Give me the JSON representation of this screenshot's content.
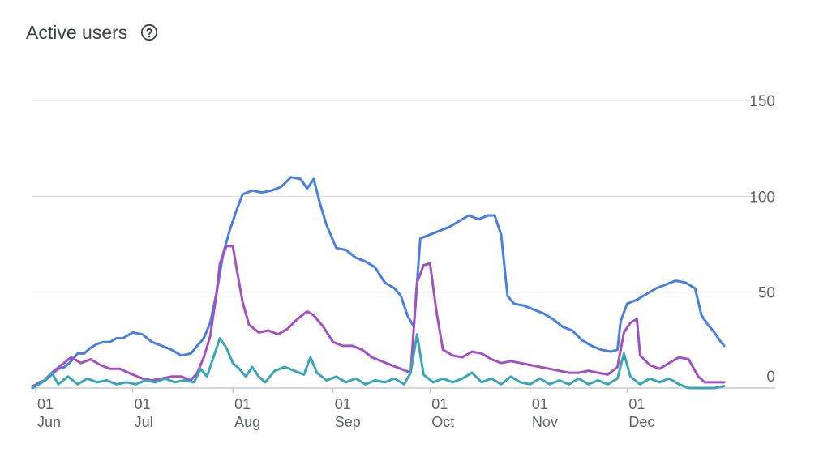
{
  "header": {
    "title": "Active users",
    "help_icon": "help-circle-icon"
  },
  "chart_data": {
    "type": "line",
    "title": "Active users",
    "xlabel": "",
    "ylabel": "",
    "ylim": [
      0,
      150
    ],
    "yticks": [
      0,
      50,
      100,
      150
    ],
    "y_axis_side": "right",
    "grid": true,
    "legend": "none",
    "x_start": "2023-05-31",
    "x_ticks": [
      {
        "date": "2023-06-01",
        "day": "01",
        "month": "Jun"
      },
      {
        "date": "2023-07-01",
        "day": "01",
        "month": "Jul"
      },
      {
        "date": "2023-08-01",
        "day": "01",
        "month": "Aug"
      },
      {
        "date": "2023-09-01",
        "day": "01",
        "month": "Sep"
      },
      {
        "date": "2023-10-01",
        "day": "01",
        "month": "Oct"
      },
      {
        "date": "2023-11-01",
        "day": "01",
        "month": "Nov"
      },
      {
        "date": "2023-12-01",
        "day": "01",
        "month": "Dec"
      }
    ],
    "series": [
      {
        "color": "#4a7fe2",
        "points": [
          [
            "2023-05-31",
            0
          ],
          [
            "2023-06-02",
            3
          ],
          [
            "2023-06-04",
            4
          ],
          [
            "2023-06-06",
            7
          ],
          [
            "2023-06-08",
            10
          ],
          [
            "2023-06-10",
            11
          ],
          [
            "2023-06-12",
            14
          ],
          [
            "2023-06-14",
            18
          ],
          [
            "2023-06-16",
            18
          ],
          [
            "2023-06-18",
            21
          ],
          [
            "2023-06-20",
            23
          ],
          [
            "2023-06-22",
            24
          ],
          [
            "2023-06-24",
            24
          ],
          [
            "2023-06-26",
            26
          ],
          [
            "2023-06-28",
            26
          ],
          [
            "2023-07-01",
            29
          ],
          [
            "2023-07-04",
            28
          ],
          [
            "2023-07-07",
            24
          ],
          [
            "2023-07-10",
            22
          ],
          [
            "2023-07-13",
            20
          ],
          [
            "2023-07-16",
            17
          ],
          [
            "2023-07-19",
            18
          ],
          [
            "2023-07-21",
            22
          ],
          [
            "2023-07-23",
            26
          ],
          [
            "2023-07-25",
            34
          ],
          [
            "2023-07-27",
            50
          ],
          [
            "2023-07-29",
            70
          ],
          [
            "2023-07-31",
            82
          ],
          [
            "2023-08-02",
            92
          ],
          [
            "2023-08-04",
            101
          ],
          [
            "2023-08-07",
            103
          ],
          [
            "2023-08-10",
            102
          ],
          [
            "2023-08-13",
            103
          ],
          [
            "2023-08-16",
            105
          ],
          [
            "2023-08-19",
            110
          ],
          [
            "2023-08-22",
            109
          ],
          [
            "2023-08-24",
            104
          ],
          [
            "2023-08-26",
            109
          ],
          [
            "2023-08-28",
            96
          ],
          [
            "2023-08-30",
            85
          ],
          [
            "2023-09-02",
            73
          ],
          [
            "2023-09-05",
            72
          ],
          [
            "2023-09-08",
            68
          ],
          [
            "2023-09-11",
            66
          ],
          [
            "2023-09-14",
            63
          ],
          [
            "2023-09-17",
            55
          ],
          [
            "2023-09-20",
            52
          ],
          [
            "2023-09-22",
            48
          ],
          [
            "2023-09-24",
            38
          ],
          [
            "2023-09-26",
            32
          ],
          [
            "2023-09-28",
            78
          ],
          [
            "2023-10-01",
            80
          ],
          [
            "2023-10-04",
            82
          ],
          [
            "2023-10-07",
            84
          ],
          [
            "2023-10-10",
            87
          ],
          [
            "2023-10-13",
            90
          ],
          [
            "2023-10-16",
            88
          ],
          [
            "2023-10-19",
            90
          ],
          [
            "2023-10-21",
            90
          ],
          [
            "2023-10-23",
            80
          ],
          [
            "2023-10-25",
            48
          ],
          [
            "2023-10-27",
            44
          ],
          [
            "2023-10-30",
            43
          ],
          [
            "2023-11-02",
            41
          ],
          [
            "2023-11-05",
            39
          ],
          [
            "2023-11-08",
            36
          ],
          [
            "2023-11-11",
            32
          ],
          [
            "2023-11-14",
            30
          ],
          [
            "2023-11-17",
            25
          ],
          [
            "2023-11-20",
            22
          ],
          [
            "2023-11-23",
            20
          ],
          [
            "2023-11-26",
            19
          ],
          [
            "2023-11-28",
            20
          ],
          [
            "2023-11-29",
            35
          ],
          [
            "2023-12-01",
            44
          ],
          [
            "2023-12-04",
            46
          ],
          [
            "2023-12-07",
            49
          ],
          [
            "2023-12-10",
            52
          ],
          [
            "2023-12-13",
            54
          ],
          [
            "2023-12-16",
            56
          ],
          [
            "2023-12-19",
            55
          ],
          [
            "2023-12-22",
            52
          ],
          [
            "2023-12-24",
            38
          ],
          [
            "2023-12-26",
            33
          ],
          [
            "2023-12-28",
            29
          ],
          [
            "2023-12-30",
            24
          ],
          [
            "2023-12-31",
            22
          ]
        ]
      },
      {
        "color": "#a351c2",
        "points": [
          [
            "2023-05-31",
            1
          ],
          [
            "2023-06-03",
            3
          ],
          [
            "2023-06-06",
            8
          ],
          [
            "2023-06-09",
            12
          ],
          [
            "2023-06-12",
            16
          ],
          [
            "2023-06-15",
            13
          ],
          [
            "2023-06-18",
            15
          ],
          [
            "2023-06-21",
            12
          ],
          [
            "2023-06-24",
            10
          ],
          [
            "2023-06-27",
            10
          ],
          [
            "2023-07-01",
            7
          ],
          [
            "2023-07-04",
            5
          ],
          [
            "2023-07-07",
            4
          ],
          [
            "2023-07-10",
            5
          ],
          [
            "2023-07-13",
            6
          ],
          [
            "2023-07-16",
            6
          ],
          [
            "2023-07-19",
            4
          ],
          [
            "2023-07-21",
            8
          ],
          [
            "2023-07-23",
            16
          ],
          [
            "2023-07-25",
            27
          ],
          [
            "2023-07-27",
            50
          ],
          [
            "2023-07-28",
            65
          ],
          [
            "2023-07-30",
            74
          ],
          [
            "2023-08-01",
            74
          ],
          [
            "2023-08-02",
            64
          ],
          [
            "2023-08-04",
            45
          ],
          [
            "2023-08-06",
            33
          ],
          [
            "2023-08-09",
            29
          ],
          [
            "2023-08-12",
            30
          ],
          [
            "2023-08-15",
            28
          ],
          [
            "2023-08-18",
            31
          ],
          [
            "2023-08-21",
            36
          ],
          [
            "2023-08-24",
            40
          ],
          [
            "2023-08-26",
            38
          ],
          [
            "2023-08-29",
            32
          ],
          [
            "2023-09-01",
            24
          ],
          [
            "2023-09-04",
            22
          ],
          [
            "2023-09-07",
            22
          ],
          [
            "2023-09-10",
            20
          ],
          [
            "2023-09-13",
            16
          ],
          [
            "2023-09-16",
            14
          ],
          [
            "2023-09-19",
            12
          ],
          [
            "2023-09-22",
            10
          ],
          [
            "2023-09-25",
            8
          ],
          [
            "2023-09-27",
            55
          ],
          [
            "2023-09-29",
            64
          ],
          [
            "2023-10-01",
            65
          ],
          [
            "2023-10-03",
            40
          ],
          [
            "2023-10-05",
            20
          ],
          [
            "2023-10-08",
            17
          ],
          [
            "2023-10-11",
            16
          ],
          [
            "2023-10-14",
            19
          ],
          [
            "2023-10-17",
            18
          ],
          [
            "2023-10-20",
            15
          ],
          [
            "2023-10-23",
            13
          ],
          [
            "2023-10-26",
            14
          ],
          [
            "2023-10-29",
            13
          ],
          [
            "2023-11-01",
            12
          ],
          [
            "2023-11-04",
            11
          ],
          [
            "2023-11-07",
            10
          ],
          [
            "2023-11-10",
            9
          ],
          [
            "2023-11-13",
            8
          ],
          [
            "2023-11-16",
            8
          ],
          [
            "2023-11-19",
            9
          ],
          [
            "2023-11-22",
            8
          ],
          [
            "2023-11-25",
            7
          ],
          [
            "2023-11-28",
            11
          ],
          [
            "2023-11-30",
            29
          ],
          [
            "2023-12-02",
            34
          ],
          [
            "2023-12-04",
            36
          ],
          [
            "2023-12-05",
            17
          ],
          [
            "2023-12-08",
            12
          ],
          [
            "2023-12-11",
            10
          ],
          [
            "2023-12-14",
            13
          ],
          [
            "2023-12-17",
            16
          ],
          [
            "2023-12-20",
            15
          ],
          [
            "2023-12-23",
            6
          ],
          [
            "2023-12-25",
            3
          ],
          [
            "2023-12-28",
            3
          ],
          [
            "2023-12-31",
            3
          ]
        ]
      },
      {
        "color": "#3aa6b5",
        "points": [
          [
            "2023-05-31",
            0
          ],
          [
            "2023-06-03",
            3
          ],
          [
            "2023-06-06",
            8
          ],
          [
            "2023-06-08",
            2
          ],
          [
            "2023-06-11",
            6
          ],
          [
            "2023-06-14",
            2
          ],
          [
            "2023-06-17",
            5
          ],
          [
            "2023-06-20",
            3
          ],
          [
            "2023-06-23",
            4
          ],
          [
            "2023-06-26",
            2
          ],
          [
            "2023-06-29",
            3
          ],
          [
            "2023-07-02",
            2
          ],
          [
            "2023-07-05",
            4
          ],
          [
            "2023-07-08",
            3
          ],
          [
            "2023-07-11",
            5
          ],
          [
            "2023-07-14",
            3
          ],
          [
            "2023-07-17",
            4
          ],
          [
            "2023-07-20",
            3
          ],
          [
            "2023-07-22",
            10
          ],
          [
            "2023-07-24",
            6
          ],
          [
            "2023-07-26",
            16
          ],
          [
            "2023-07-28",
            26
          ],
          [
            "2023-07-30",
            21
          ],
          [
            "2023-08-01",
            13
          ],
          [
            "2023-08-03",
            10
          ],
          [
            "2023-08-05",
            6
          ],
          [
            "2023-08-07",
            11
          ],
          [
            "2023-08-09",
            6
          ],
          [
            "2023-08-11",
            3
          ],
          [
            "2023-08-14",
            9
          ],
          [
            "2023-08-17",
            11
          ],
          [
            "2023-08-20",
            9
          ],
          [
            "2023-08-23",
            7
          ],
          [
            "2023-08-25",
            16
          ],
          [
            "2023-08-27",
            8
          ],
          [
            "2023-08-30",
            4
          ],
          [
            "2023-09-02",
            6
          ],
          [
            "2023-09-05",
            3
          ],
          [
            "2023-09-08",
            5
          ],
          [
            "2023-09-11",
            2
          ],
          [
            "2023-09-14",
            4
          ],
          [
            "2023-09-17",
            3
          ],
          [
            "2023-09-20",
            5
          ],
          [
            "2023-09-23",
            2
          ],
          [
            "2023-09-25",
            8
          ],
          [
            "2023-09-27",
            28
          ],
          [
            "2023-09-29",
            7
          ],
          [
            "2023-10-02",
            3
          ],
          [
            "2023-10-05",
            5
          ],
          [
            "2023-10-08",
            3
          ],
          [
            "2023-10-11",
            5
          ],
          [
            "2023-10-14",
            8
          ],
          [
            "2023-10-17",
            3
          ],
          [
            "2023-10-20",
            5
          ],
          [
            "2023-10-23",
            2
          ],
          [
            "2023-10-26",
            6
          ],
          [
            "2023-10-29",
            3
          ],
          [
            "2023-11-01",
            2
          ],
          [
            "2023-11-04",
            5
          ],
          [
            "2023-11-07",
            2
          ],
          [
            "2023-11-10",
            4
          ],
          [
            "2023-11-13",
            2
          ],
          [
            "2023-11-16",
            5
          ],
          [
            "2023-11-19",
            2
          ],
          [
            "2023-11-22",
            4
          ],
          [
            "2023-11-25",
            2
          ],
          [
            "2023-11-28",
            5
          ],
          [
            "2023-11-30",
            18
          ],
          [
            "2023-12-02",
            6
          ],
          [
            "2023-12-05",
            2
          ],
          [
            "2023-12-08",
            5
          ],
          [
            "2023-12-11",
            3
          ],
          [
            "2023-12-14",
            5
          ],
          [
            "2023-12-17",
            2
          ],
          [
            "2023-12-20",
            0
          ],
          [
            "2023-12-24",
            0
          ],
          [
            "2023-12-28",
            0
          ],
          [
            "2023-12-31",
            1
          ]
        ]
      }
    ]
  }
}
